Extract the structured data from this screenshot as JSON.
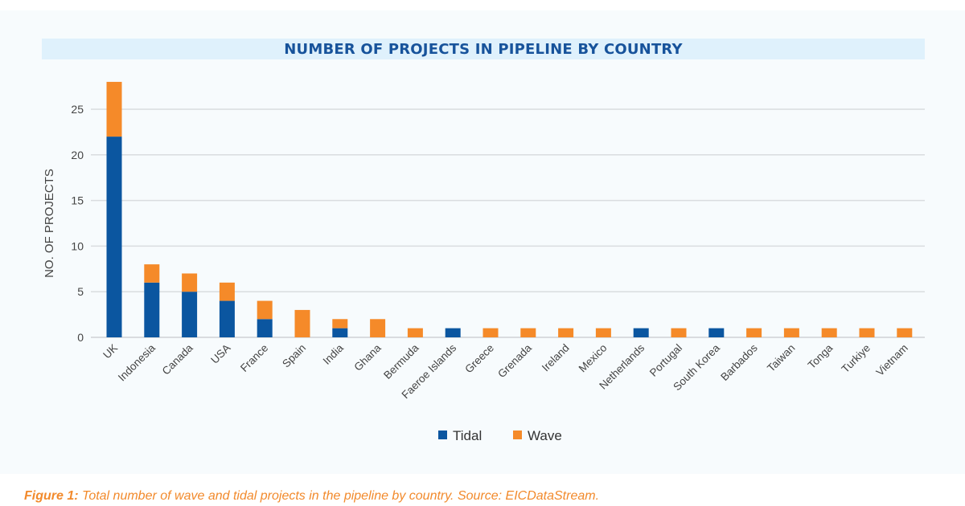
{
  "chart_data": {
    "type": "bar",
    "stacked": true,
    "title": "NUMBER OF PROJECTS IN PIPELINE BY COUNTRY",
    "xlabel": "",
    "ylabel": "NO. OF PROJECTS",
    "ylim": [
      0,
      28
    ],
    "yticks": [
      0,
      5,
      10,
      15,
      20,
      25
    ],
    "grid": true,
    "legend": "bottom",
    "categories": [
      "UK",
      "Indonesia",
      "Canada",
      "USA",
      "France",
      "Spain",
      "India",
      "Ghana",
      "Bermuda",
      "Faeroe Islands",
      "Greece",
      "Grenada",
      "Ireland",
      "Mexico",
      "Netherlands",
      "Portugal",
      "South Korea",
      "Barbados",
      "Taiwan",
      "Tonga",
      "Turkiye",
      "Vietnam"
    ],
    "series": [
      {
        "name": "Tidal",
        "color": "#0b56a0",
        "values": [
          22,
          6,
          5,
          4,
          2,
          0,
          1,
          0,
          0,
          1,
          0,
          0,
          0,
          0,
          1,
          0,
          1,
          0,
          0,
          0,
          0,
          0
        ]
      },
      {
        "name": "Wave",
        "color": "#f58a29",
        "values": [
          6,
          2,
          2,
          2,
          2,
          3,
          1,
          2,
          1,
          0,
          1,
          1,
          1,
          1,
          0,
          1,
          0,
          1,
          1,
          1,
          1,
          1
        ]
      }
    ]
  },
  "caption": {
    "label": "Figure 1:",
    "text": " Total number of wave and tidal projects in the pipeline by country. Source: EICDataStream."
  }
}
